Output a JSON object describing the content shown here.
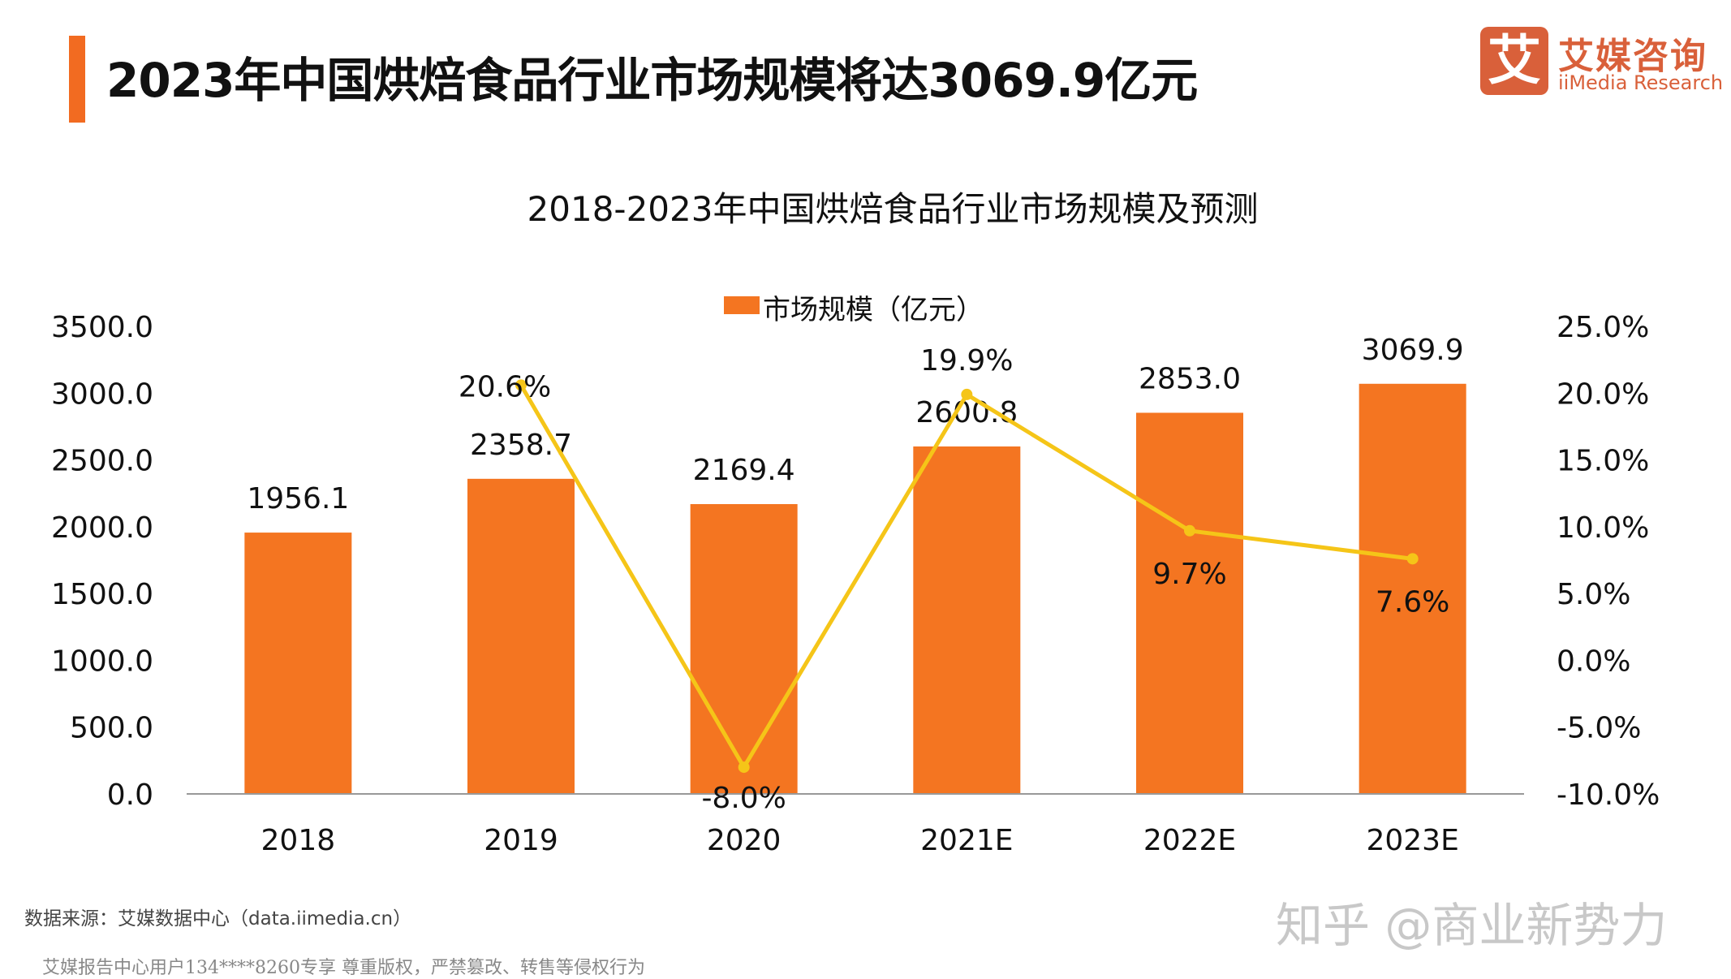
{
  "header": {
    "title": "2023年中国烘焙食品行业市场规模将达3069.9亿元",
    "logo_cn": "艾媒咨询",
    "logo_en": "iiMedia Research",
    "logo_mark": "艾"
  },
  "footer": {
    "source": "数据来源：艾媒数据中心（data.iimedia.cn）",
    "notice": "艾媒报告中心用户134****8260专享 尊重版权，严禁篡改、转售等侵权行为",
    "watermark": "知乎 @商业新势力"
  },
  "chart_data": {
    "type": "bar+line",
    "title": "2018-2023年中国烘焙食品行业市场规模及预测",
    "categories": [
      "2018",
      "2019",
      "2020",
      "2021E",
      "2022E",
      "2023E"
    ],
    "series": [
      {
        "name": "市场规模（亿元）",
        "type": "bar",
        "axis": "left",
        "values": [
          1956.1,
          2358.7,
          2169.4,
          2600.8,
          2853.0,
          3069.9
        ],
        "labels": [
          "1956.1",
          "2358.7",
          "2169.4",
          "2600.8",
          "2853.0",
          "3069.9"
        ],
        "color": "#f47521"
      },
      {
        "type": "line",
        "axis": "right",
        "values": [
          null,
          20.6,
          -8.0,
          19.9,
          9.7,
          7.6
        ],
        "labels": [
          "",
          "20.6%",
          "-8.0%",
          "19.9%",
          "9.7%",
          "7.6%"
        ],
        "color": "#f5c518"
      }
    ],
    "y_left": {
      "min": 0,
      "max": 3500,
      "ticks": [
        "0.0",
        "500.0",
        "1000.0",
        "1500.0",
        "2000.0",
        "2500.0",
        "3000.0",
        "3500.0"
      ]
    },
    "y_right": {
      "min": -10,
      "max": 25,
      "ticks": [
        "-10.0%",
        "-5.0%",
        "0.0%",
        "5.0%",
        "10.0%",
        "15.0%",
        "20.0%",
        "25.0%"
      ]
    },
    "legend": "top-center",
    "grid": false
  }
}
